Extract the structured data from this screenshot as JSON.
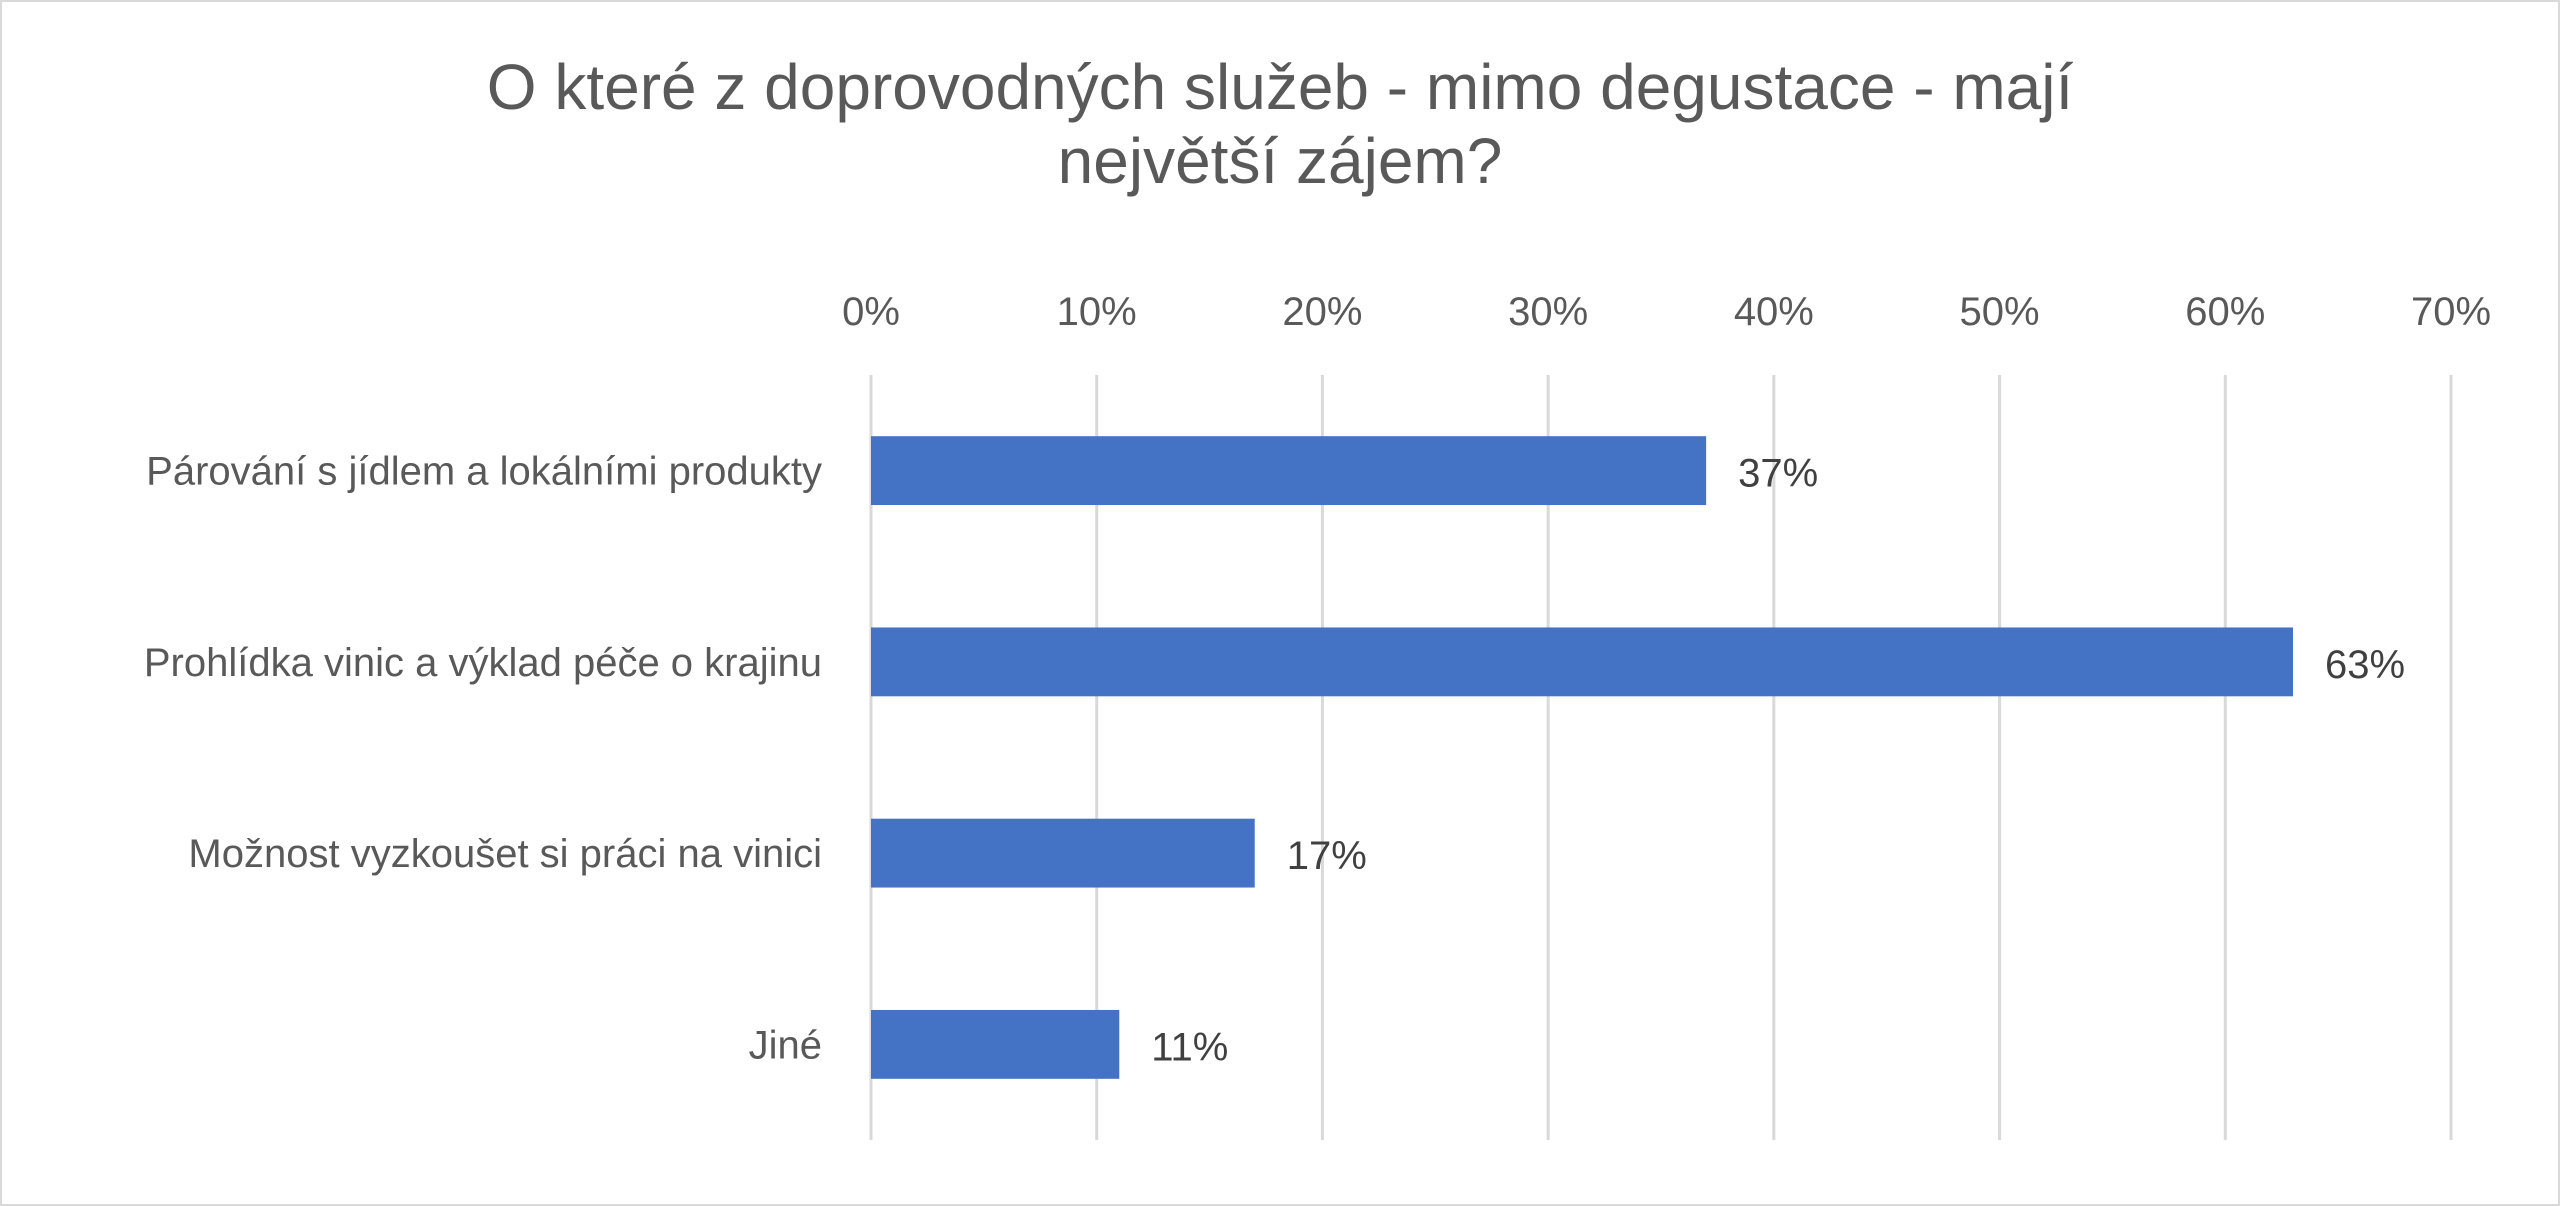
{
  "chart_data": {
    "type": "bar",
    "orientation": "horizontal",
    "title_lines": [
      "O které z doprovodných služeb - mimo degustace - mají",
      "největší zájem?"
    ],
    "categories": [
      "Párování s jídlem a lokálními produkty",
      "Prohlídka vinic a výklad péče o krajinu",
      "Možnost vyzkoušet si práci na vinici",
      "Jiné"
    ],
    "values": [
      37,
      63,
      17,
      11
    ],
    "value_labels": [
      "37%",
      "63%",
      "17%",
      "11%"
    ],
    "xlim": [
      0,
      70
    ],
    "x_ticks": [
      0,
      10,
      20,
      30,
      40,
      50,
      60,
      70
    ],
    "x_tick_labels": [
      "0%",
      "10%",
      "20%",
      "30%",
      "40%",
      "50%",
      "60%",
      "70%"
    ],
    "x_axis_position": "top",
    "grid": true,
    "legend": "none",
    "bar_color": "#4472c4",
    "grid_color": "#d9d9d9"
  }
}
